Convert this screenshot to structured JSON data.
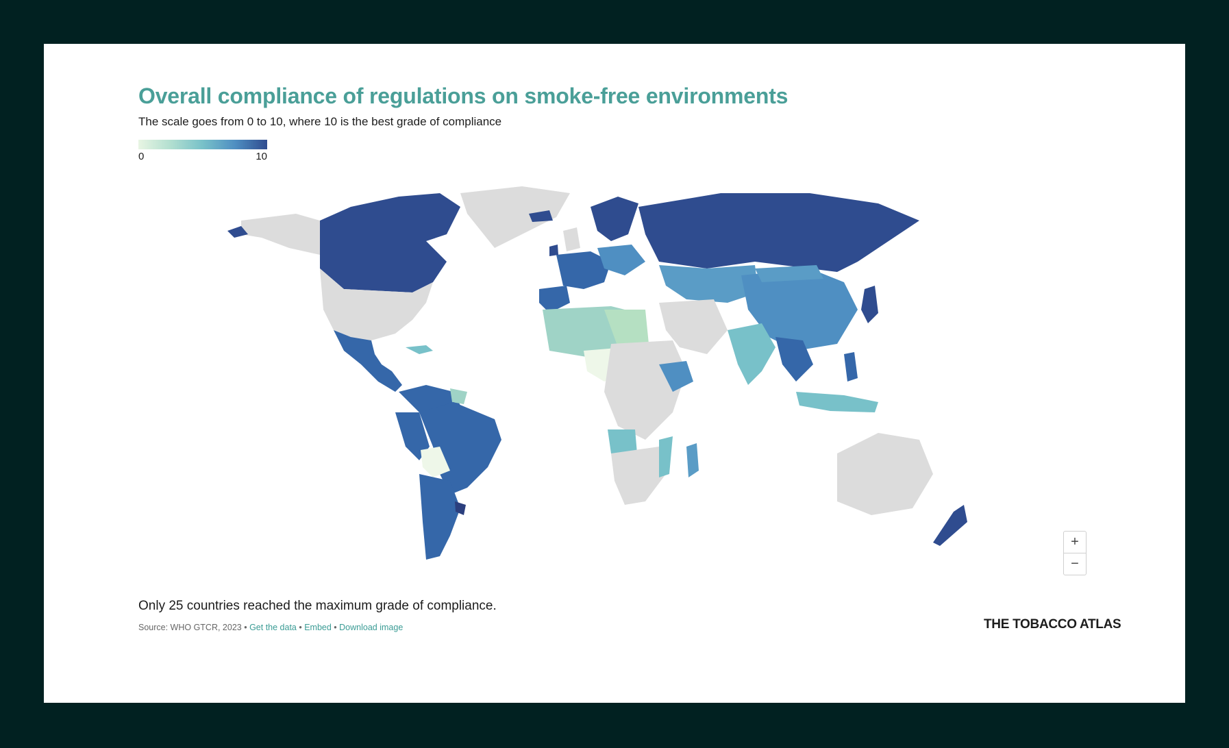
{
  "title": "Overall compliance of regulations on smoke-free environments",
  "subtitle": "The scale goes from 0 to 10, where 10 is the best grade of compliance",
  "legend": {
    "min_label": "0",
    "max_label": "10",
    "colors": [
      "#e8f5e3",
      "#b2dfd0",
      "#78c1c9",
      "#4f8fc2",
      "#2f4c8f"
    ]
  },
  "note": "Only 25 countries reached the maximum grade of compliance.",
  "source": {
    "prefix": "Source: WHO GTCR, 2023",
    "sep": " • ",
    "get_data": "Get the data",
    "embed": "Embed",
    "download": "Download image"
  },
  "brand": "THE TOBACCO ATLAS",
  "zoom": {
    "in": "+",
    "out": "−"
  },
  "colors": {
    "accent": "#4a9f98",
    "no_data": "#dcdcdc",
    "frame": "#012121"
  }
}
